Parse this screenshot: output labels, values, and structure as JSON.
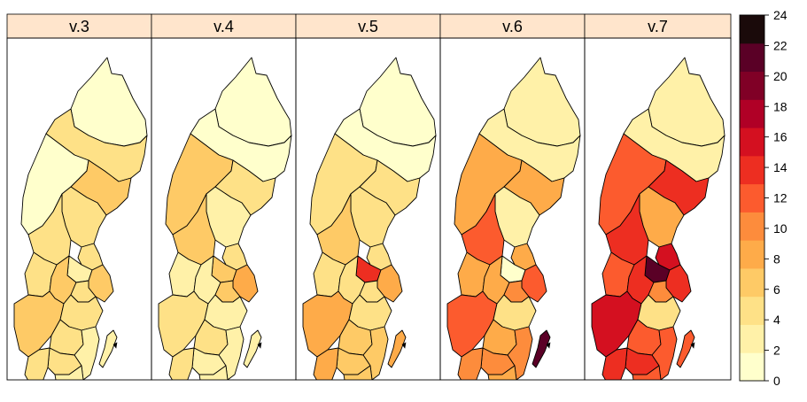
{
  "chart_data": {
    "type": "choropleth",
    "panels": [
      "v.3",
      "v.4",
      "v.5",
      "v.6",
      "v.7"
    ],
    "colorbar": {
      "min": 0,
      "max": 24,
      "step": 2,
      "ticks": [
        "0",
        "2",
        "4",
        "6",
        "8",
        "10",
        "12",
        "14",
        "16",
        "18",
        "20",
        "22",
        "24"
      ],
      "colors": [
        "#FFFFCC",
        "#FFF1A8",
        "#FEE187",
        "#FECA66",
        "#FEAB49",
        "#FD8C3C",
        "#FC5B2E",
        "#ED2E21",
        "#D41020",
        "#B00026",
        "#800026",
        "#5A0026",
        "#1A0A0A"
      ]
    },
    "regions": [
      "Norrbotten",
      "Västerbotten",
      "Jämtland",
      "Västernorrland",
      "Gävleborg",
      "Dalarna",
      "Värmland",
      "Uppsala",
      "Västmanland",
      "Örebro",
      "Stockholm",
      "Södermanland",
      "Västra Götaland",
      "Östergötland",
      "Jönköping",
      "Kalmar",
      "Kronoberg",
      "Halland",
      "Blekinge",
      "Skåne",
      "Gotland"
    ],
    "values": [
      [
        1,
        4,
        1,
        7,
        4,
        4,
        4,
        5,
        2,
        7,
        6,
        5,
        6,
        4,
        5,
        3,
        4,
        5,
        3,
        1,
        3
      ],
      [
        1,
        1,
        6,
        4,
        2,
        6,
        3,
        4,
        6,
        3,
        8,
        7,
        4,
        3,
        4,
        3,
        3,
        4,
        3,
        3,
        2
      ],
      [
        1,
        1,
        5,
        5,
        4,
        6,
        5,
        5,
        15,
        5,
        8,
        5,
        9,
        4,
        7,
        6,
        7,
        9,
        6,
        6,
        8
      ],
      [
        3,
        3,
        8,
        9,
        3,
        12,
        8,
        9,
        0,
        9,
        12,
        10,
        12,
        4,
        9,
        11,
        10,
        11,
        9,
        11,
        23
      ],
      [
        3,
        3,
        12,
        15,
        8,
        15,
        13,
        16,
        23,
        15,
        14,
        11,
        16,
        5,
        12,
        13,
        15,
        14,
        13,
        12,
        13
      ]
    ]
  }
}
